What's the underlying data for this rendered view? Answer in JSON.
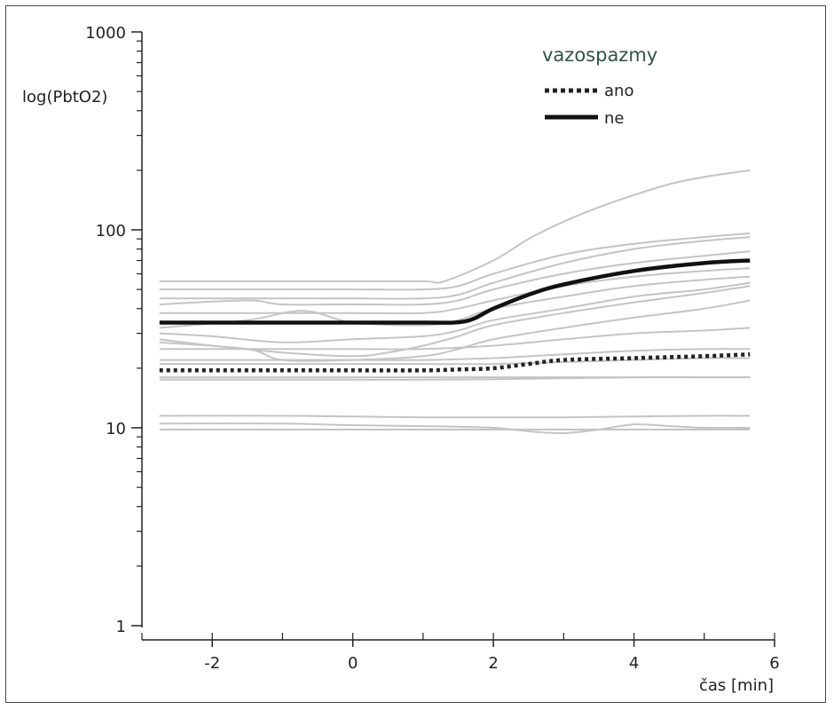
{
  "chart_data": {
    "type": "line",
    "ylabel": "log(PbtO2)",
    "xlabel": "čas [min]",
    "x_scale": "linear",
    "y_scale": "log",
    "xlim": [
      -3,
      6
    ],
    "ylim": [
      1,
      1000
    ],
    "x_ticks": [
      -2,
      0,
      2,
      4,
      6
    ],
    "y_ticks": [
      1,
      10,
      100,
      1000
    ],
    "grid": false,
    "legend": {
      "title": "vazospazmy",
      "placement": "top-right",
      "entries": [
        {
          "label": "ano",
          "style": "dotted"
        },
        {
          "label": "ne",
          "style": "solid"
        }
      ]
    },
    "series": [
      {
        "name": "ano",
        "style": "dotted",
        "color": "#222222",
        "x": [
          -2.75,
          -2,
          -1,
          0,
          1,
          1.5,
          2,
          2.5,
          3,
          4,
          5,
          5.65
        ],
        "y": [
          19.5,
          19.5,
          19.5,
          19.5,
          19.5,
          19.7,
          20,
          21,
          22,
          22.5,
          23,
          23.5
        ]
      },
      {
        "name": "ne",
        "style": "solid",
        "color": "#111111",
        "x": [
          -2.75,
          -2,
          -1,
          0,
          1,
          1.6,
          2,
          2.5,
          3,
          4,
          5,
          5.65
        ],
        "y": [
          34,
          34,
          34,
          34,
          34,
          34.5,
          40,
          47,
          53,
          62,
          68,
          70
        ]
      }
    ],
    "individual_lines": [
      {
        "x": [
          -2.75,
          -1,
          0,
          1,
          1.3,
          2,
          2.5,
          3,
          3.5,
          4,
          4.5,
          5,
          5.65
        ],
        "y": [
          55,
          55,
          55,
          55,
          55,
          70,
          90,
          110,
          130,
          150,
          170,
          185,
          200
        ]
      },
      {
        "x": [
          -2.75,
          -1,
          0,
          1,
          1.5,
          2,
          3,
          4,
          5,
          5.65
        ],
        "y": [
          50,
          50,
          50,
          50,
          52,
          60,
          75,
          85,
          92,
          96
        ]
      },
      {
        "x": [
          -2.75,
          -1,
          0,
          1,
          1.5,
          2,
          3,
          4,
          5,
          5.65
        ],
        "y": [
          45,
          45,
          45,
          45,
          47,
          54,
          68,
          80,
          88,
          92
        ]
      },
      {
        "x": [
          -2.75,
          -1.5,
          -1,
          0,
          1,
          1.5,
          2,
          3,
          4,
          5,
          5.65
        ],
        "y": [
          42,
          44,
          42,
          42,
          42,
          44,
          50,
          60,
          68,
          74,
          78
        ]
      },
      {
        "x": [
          -2.75,
          -1,
          0,
          1,
          1.5,
          2,
          3,
          4,
          5,
          5.65
        ],
        "y": [
          38,
          38,
          38,
          38,
          40,
          44,
          52,
          58,
          62,
          64
        ]
      },
      {
        "x": [
          -2.75,
          -1.5,
          -0.7,
          0,
          1,
          1.5,
          2,
          3,
          4,
          5,
          5.65
        ],
        "y": [
          32,
          35,
          39,
          34,
          33,
          35,
          40,
          46,
          52,
          56,
          58
        ]
      },
      {
        "x": [
          -2.75,
          -2,
          -1,
          0,
          1,
          1.5,
          2,
          3,
          4,
          5,
          5.65
        ],
        "y": [
          30,
          29,
          27,
          28,
          29,
          31,
          35,
          40,
          46,
          50,
          54
        ]
      },
      {
        "x": [
          -2.75,
          -2,
          -1,
          0,
          0.5,
          1,
          1.5,
          2,
          3,
          4,
          5,
          5.65
        ],
        "y": [
          28,
          26,
          24,
          23,
          24,
          26,
          29,
          33,
          38,
          43,
          48,
          52
        ]
      },
      {
        "x": [
          -2.75,
          -1.5,
          -1,
          0,
          1,
          1.5,
          2,
          3,
          4,
          5,
          5.65
        ],
        "y": [
          27,
          25,
          22,
          22,
          23,
          25,
          28,
          32,
          36,
          40,
          44
        ]
      },
      {
        "x": [
          -2.75,
          -1,
          0,
          1,
          2,
          3,
          4,
          5,
          5.65
        ],
        "y": [
          25,
          25,
          25,
          25,
          26,
          28,
          30,
          31,
          32
        ]
      },
      {
        "x": [
          -2.75,
          -1,
          0,
          1,
          2,
          3,
          4,
          5,
          5.65
        ],
        "y": [
          22,
          22,
          22,
          22,
          22.5,
          23.5,
          24.5,
          25,
          25
        ]
      },
      {
        "x": [
          -2.75,
          -1,
          0,
          1,
          2,
          3,
          4,
          5,
          5.65
        ],
        "y": [
          21,
          21,
          21,
          21,
          21,
          21.5,
          22,
          22.5,
          22.5
        ]
      },
      {
        "x": [
          -2.75,
          -1,
          0,
          1,
          2,
          3,
          4,
          5,
          5.65
        ],
        "y": [
          18,
          18,
          18,
          18,
          18,
          18,
          18,
          18,
          18
        ]
      },
      {
        "x": [
          -2.75,
          -1,
          0,
          1,
          2,
          3,
          4,
          5,
          5.65
        ],
        "y": [
          17.5,
          17.5,
          17.5,
          17.5,
          17.6,
          17.8,
          18,
          18,
          18
        ]
      },
      {
        "x": [
          -2.75,
          -1,
          0,
          1,
          2,
          3,
          4,
          5,
          5.65
        ],
        "y": [
          11.5,
          11.5,
          11.4,
          11.3,
          11.3,
          11.3,
          11.4,
          11.5,
          11.5
        ]
      },
      {
        "x": [
          -2.75,
          -1,
          0,
          1,
          2,
          2.5,
          3,
          3.5,
          4,
          4.5,
          5,
          5.65
        ],
        "y": [
          10.5,
          10.5,
          10.3,
          10.2,
          10,
          9.6,
          9.4,
          9.8,
          10.4,
          10.2,
          10,
          10
        ]
      },
      {
        "x": [
          -2.75,
          -1,
          0,
          1,
          2,
          3,
          4,
          5,
          5.65
        ],
        "y": [
          9.8,
          9.8,
          9.8,
          9.8,
          9.8,
          9.8,
          9.8,
          9.8,
          9.8
        ]
      }
    ]
  }
}
